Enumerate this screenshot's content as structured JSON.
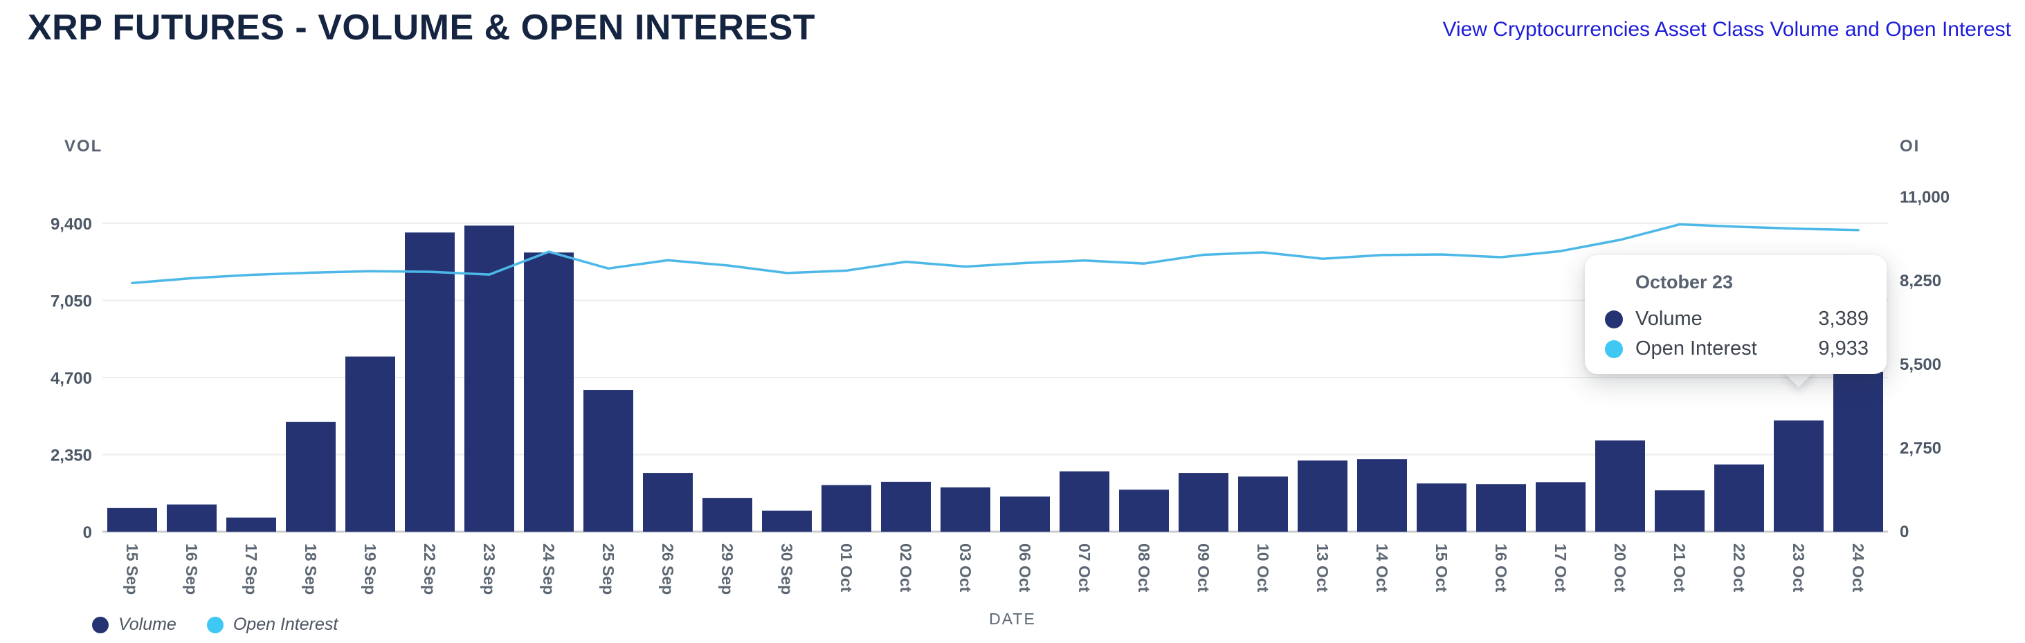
{
  "header": {
    "title": "XRP FUTURES - VOLUME & OPEN INTEREST",
    "link_text": "View Cryptocurrencies Asset Class Volume and Open Interest"
  },
  "chart_data": {
    "type": "bar+line",
    "categories": [
      "15 Sep",
      "16 Sep",
      "17 Sep",
      "18 Sep",
      "19 Sep",
      "22 Sep",
      "23 Sep",
      "24 Sep",
      "25 Sep",
      "26 Sep",
      "29 Sep",
      "30 Sep",
      "01 Oct",
      "02 Oct",
      "03 Oct",
      "06 Oct",
      "07 Oct",
      "08 Oct",
      "09 Oct",
      "10 Oct",
      "13 Oct",
      "14 Oct",
      "15 Oct",
      "16 Oct",
      "17 Oct",
      "20 Oct",
      "21 Oct",
      "22 Oct",
      "23 Oct",
      "24 Oct"
    ],
    "series": [
      {
        "name": "Volume",
        "type": "bar",
        "axis": "left",
        "values": [
          720,
          830,
          430,
          3350,
          5340,
          9120,
          9330,
          8510,
          4320,
          1790,
          1030,
          640,
          1420,
          1520,
          1350,
          1070,
          1840,
          1280,
          1790,
          1680,
          2170,
          2210,
          1470,
          1450,
          1510,
          2780,
          1260,
          2050,
          3389,
          4870
        ]
      },
      {
        "name": "Open Interest",
        "type": "line",
        "axis": "right",
        "values": [
          8150,
          8310,
          8420,
          8490,
          8540,
          8520,
          8430,
          9180,
          8630,
          8900,
          8730,
          8480,
          8560,
          8850,
          8690,
          8810,
          8890,
          8790,
          9080,
          9160,
          8950,
          9070,
          9090,
          9000,
          9200,
          9570,
          10080,
          10000,
          9933,
          9890
        ]
      }
    ],
    "left_axis": {
      "label": "VOL",
      "ticks": [
        "0",
        "2,350",
        "4,700",
        "7,050",
        "9,400"
      ],
      "max": 9400
    },
    "right_axis": {
      "label": "OI",
      "ticks": [
        "0",
        "2,750",
        "5,500",
        "8,250",
        "11,000"
      ],
      "max": 11000
    },
    "xlabel": "DATE",
    "grid": true,
    "legend_position": "bottom-left"
  },
  "tooltip": {
    "title": "October 23",
    "rows": [
      {
        "label": "Volume",
        "value": "3,389"
      },
      {
        "label": "Open Interest",
        "value": "9,933"
      }
    ]
  },
  "legend": [
    {
      "label": "Volume"
    },
    {
      "label": "Open Interest"
    }
  ],
  "colors": {
    "bar": "#253373",
    "line": "#4db8e8",
    "oi_dot": "#3fc8f4",
    "title": "#152440",
    "link": "#1d1dd8",
    "grid": "#ededef",
    "axis_line": "#c9ccd0",
    "tick_text": "#4d5866",
    "x_tick_text": "#5d6773"
  }
}
